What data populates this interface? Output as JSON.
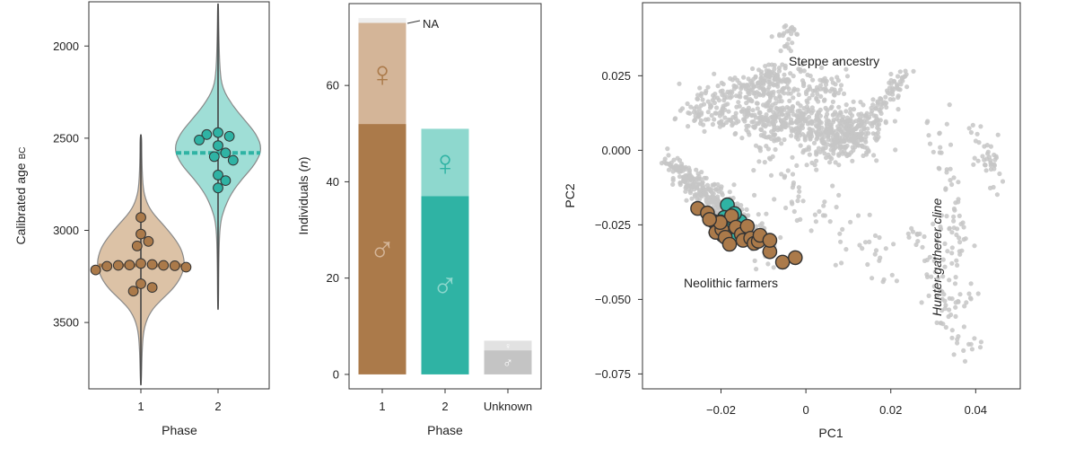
{
  "colors": {
    "phase1": "#ab7a4a",
    "phase1_light": "#d4b598",
    "phase1_violin": "#dcc2a6",
    "phase2": "#2fb3a4",
    "phase2_light": "#8ed8ce",
    "phase2_violin": "#9fded6",
    "unknown": "#c4c4c4",
    "unknown_light": "#e2e2e2",
    "na": "#eeeeee",
    "background_cloud": "#c6c6c6",
    "violin_outline": "#888888"
  },
  "chart_data": [
    {
      "type": "violin",
      "xlabel": "Phase",
      "ylabel_main": "Calibrated age",
      "ylabel_unit": "BC",
      "categories": [
        "1",
        "2"
      ],
      "yticks": [
        2000,
        2500,
        3000,
        3500
      ],
      "ylim": [
        1760,
        3860
      ],
      "y_inverted": true,
      "series": [
        {
          "name": "Phase 1",
          "range": [
            2480,
            3840
          ],
          "median": 3190,
          "violin_profile": [
            [
              2480,
              0.02
            ],
            [
              2600,
              0.02
            ],
            [
              2750,
              0.04
            ],
            [
              2830,
              0.1
            ],
            [
              2900,
              0.24
            ],
            [
              2980,
              0.55
            ],
            [
              3060,
              0.82
            ],
            [
              3120,
              0.95
            ],
            [
              3190,
              1.0
            ],
            [
              3260,
              0.9
            ],
            [
              3320,
              0.72
            ],
            [
              3380,
              0.45
            ],
            [
              3440,
              0.22
            ],
            [
              3520,
              0.08
            ],
            [
              3620,
              0.03
            ],
            [
              3840,
              0.01
            ]
          ],
          "points": [
            2930,
            3020,
            3060,
            3085,
            3180,
            3185,
            3188,
            3190,
            3190,
            3192,
            3195,
            3200,
            3215,
            3290,
            3310,
            3330
          ]
        },
        {
          "name": "Phase 2",
          "range": [
            1770,
            3430
          ],
          "median": 2580,
          "violin_profile": [
            [
              1770,
              0.01
            ],
            [
              1960,
              0.02
            ],
            [
              2130,
              0.04
            ],
            [
              2230,
              0.1
            ],
            [
              2320,
              0.32
            ],
            [
              2400,
              0.6
            ],
            [
              2480,
              0.88
            ],
            [
              2560,
              1.0
            ],
            [
              2640,
              0.85
            ],
            [
              2720,
              0.55
            ],
            [
              2800,
              0.3
            ],
            [
              2880,
              0.14
            ],
            [
              2960,
              0.05
            ],
            [
              3100,
              0.02
            ],
            [
              3430,
              0.01
            ]
          ],
          "points": [
            2470,
            2490,
            2480,
            2510,
            2540,
            2580,
            2600,
            2620,
            2700,
            2730,
            2770
          ]
        }
      ]
    },
    {
      "type": "bar",
      "stacked": true,
      "xlabel": "Phase",
      "ylabel": "Individuals (n)",
      "categories": [
        "1",
        "2",
        "Unknown"
      ],
      "yticks": [
        0,
        20,
        40,
        60
      ],
      "ylim": [
        -3,
        77
      ],
      "annotation": "NA",
      "series": [
        {
          "name": "male",
          "symbol": "♂",
          "values": [
            52,
            37,
            5
          ]
        },
        {
          "name": "female",
          "symbol": "♀",
          "values": [
            21,
            14,
            2
          ]
        },
        {
          "name": "NA",
          "values": [
            1,
            0,
            0
          ]
        }
      ]
    },
    {
      "type": "scatter",
      "xlabel": "PC1",
      "ylabel": "PC2",
      "xticks": [
        -0.02,
        0,
        0.02,
        0.04
      ],
      "yticks": [
        0.025,
        0.0,
        -0.025,
        -0.05,
        -0.075
      ],
      "xtick_labels": [
        "−0.02",
        "0",
        "0.02",
        "0.04"
      ],
      "ytick_labels": [
        "0.025",
        "0.000",
        "−0.025",
        "−0.050",
        "−0.075"
      ],
      "xlim": [
        -0.0385,
        0.0505
      ],
      "ylim": [
        -0.08,
        0.0495
      ],
      "annotations": [
        "Steppe ancestry",
        "Neolithic farmers",
        "Hunter-gatherer cline"
      ],
      "series": [
        {
          "name": "Phase 2",
          "points": [
            [
              -0.0185,
              -0.0183
            ],
            [
              -0.0192,
              -0.0225
            ],
            [
              -0.0178,
              -0.0255
            ],
            [
              -0.0162,
              -0.0272
            ],
            [
              -0.0201,
              -0.024
            ],
            [
              -0.0173,
              -0.0295
            ],
            [
              -0.0155,
              -0.0238
            ],
            [
              -0.0188,
              -0.0268
            ],
            [
              -0.0168,
              -0.0212
            ],
            [
              -0.0145,
              -0.0262
            ],
            [
              -0.0196,
              -0.0285
            ]
          ]
        },
        {
          "name": "Phase 1",
          "points": [
            [
              -0.0255,
              -0.0195
            ],
            [
              -0.0232,
              -0.021
            ],
            [
              -0.0218,
              -0.0238
            ],
            [
              -0.0212,
              -0.0275
            ],
            [
              -0.0198,
              -0.0265
            ],
            [
              -0.019,
              -0.0292
            ],
            [
              -0.0175,
              -0.022
            ],
            [
              -0.0165,
              -0.0258
            ],
            [
              -0.0152,
              -0.0282
            ],
            [
              -0.0148,
              -0.0302
            ],
            [
              -0.0138,
              -0.0255
            ],
            [
              -0.013,
              -0.0295
            ],
            [
              -0.0122,
              -0.0312
            ],
            [
              -0.0112,
              -0.0305
            ],
            [
              -0.0108,
              -0.0285
            ],
            [
              -0.0085,
              -0.034
            ],
            [
              -0.0085,
              -0.0302
            ],
            [
              -0.0055,
              -0.0375
            ],
            [
              -0.0025,
              -0.036
            ],
            [
              -0.0202,
              -0.0242
            ],
            [
              -0.0227,
              -0.0232
            ],
            [
              -0.018,
              -0.0315
            ]
          ]
        }
      ]
    }
  ]
}
